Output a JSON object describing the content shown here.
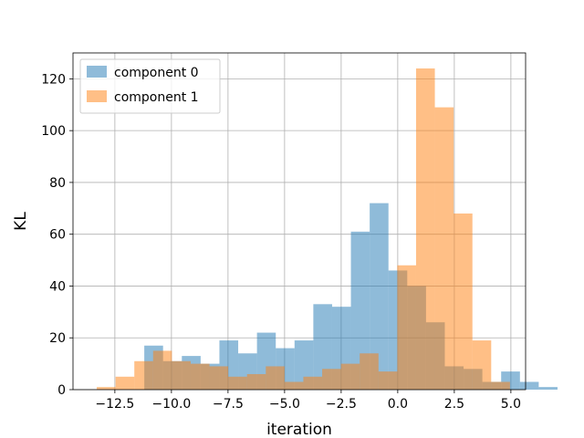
{
  "chart_data": {
    "type": "histogram",
    "xlabel": "iteration",
    "ylabel": "KL",
    "xlim": [
      -14.35,
      5.65
    ],
    "ylim": [
      0,
      130
    ],
    "xticks": [
      -12.5,
      -10.0,
      -7.5,
      -5.0,
      -2.5,
      0.0,
      2.5,
      5.0
    ],
    "xtick_labels": [
      "−12.5",
      "−10.0",
      "−7.5",
      "−5.0",
      "−2.5",
      "0.0",
      "2.5",
      "5.0"
    ],
    "yticks": [
      0,
      20,
      40,
      60,
      80,
      100,
      120
    ],
    "ytick_labels": [
      "0",
      "20",
      "40",
      "60",
      "80",
      "100",
      "120"
    ],
    "grid": true,
    "legend_position": "top-left",
    "series": [
      {
        "name": "component 0",
        "color": "#1f77b4",
        "opacity": 0.5,
        "bins": [
          [
            -11.2,
            -10.37,
            17
          ],
          [
            -10.37,
            -9.54,
            11
          ],
          [
            -9.54,
            -8.71,
            13
          ],
          [
            -8.71,
            -7.88,
            10
          ],
          [
            -7.88,
            -7.05,
            19
          ],
          [
            -7.05,
            -6.22,
            14
          ],
          [
            -6.22,
            -5.39,
            22
          ],
          [
            -5.39,
            -4.56,
            16
          ],
          [
            -4.56,
            -3.73,
            19
          ],
          [
            -3.73,
            -2.9,
            33
          ],
          [
            -2.9,
            -2.07,
            32
          ],
          [
            -2.07,
            -1.24,
            61
          ],
          [
            -1.24,
            -0.41,
            72
          ],
          [
            -0.41,
            0.42,
            46
          ],
          [
            0.42,
            1.25,
            40
          ],
          [
            1.25,
            2.08,
            26
          ],
          [
            2.08,
            2.91,
            9
          ],
          [
            2.91,
            3.74,
            8
          ],
          [
            3.74,
            4.57,
            3
          ],
          [
            4.57,
            5.4,
            7
          ],
          [
            5.4,
            6.23,
            3
          ],
          [
            6.23,
            7.06,
            1
          ]
        ]
      },
      {
        "name": "component 1",
        "color": "#ff7f0e",
        "opacity": 0.5,
        "bins": [
          [
            -13.3,
            -12.47,
            1
          ],
          [
            -12.47,
            -11.64,
            5
          ],
          [
            -11.64,
            -10.81,
            11
          ],
          [
            -10.81,
            -9.98,
            15
          ],
          [
            -9.98,
            -9.15,
            11
          ],
          [
            -9.15,
            -8.32,
            10
          ],
          [
            -8.32,
            -7.49,
            9
          ],
          [
            -7.49,
            -6.66,
            5
          ],
          [
            -6.66,
            -5.83,
            6
          ],
          [
            -5.83,
            -5.0,
            9
          ],
          [
            -5.0,
            -4.17,
            3
          ],
          [
            -4.17,
            -3.34,
            5
          ],
          [
            -3.34,
            -2.51,
            8
          ],
          [
            -2.51,
            -1.68,
            10
          ],
          [
            -1.68,
            -0.85,
            14
          ],
          [
            -0.85,
            -0.02,
            7
          ],
          [
            -0.02,
            0.81,
            48
          ],
          [
            0.81,
            1.64,
            124
          ],
          [
            1.64,
            2.47,
            109
          ],
          [
            2.47,
            3.3,
            68
          ],
          [
            3.3,
            4.13,
            19
          ],
          [
            4.13,
            4.96,
            3
          ]
        ]
      }
    ]
  }
}
